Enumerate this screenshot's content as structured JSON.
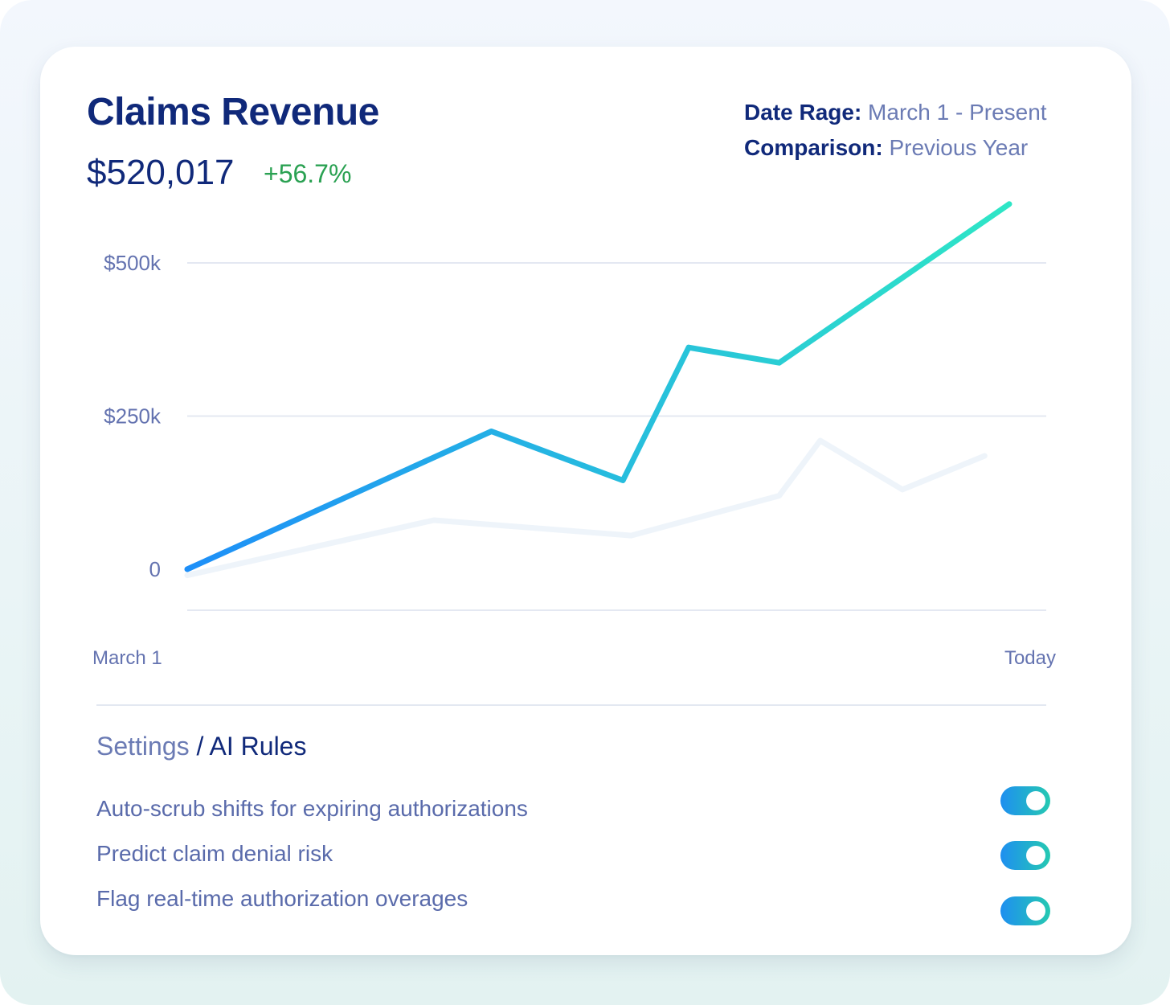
{
  "header": {
    "title": "Claims Revenue",
    "total": "$520,017",
    "change": "+56.7%",
    "date_range_label": "Date Rage:",
    "date_range_value": "March 1 - Present",
    "comparison_label": "Comparison:",
    "comparison_value": "Previous Year"
  },
  "chart_data": {
    "type": "line",
    "title": "",
    "xlabel": "",
    "ylabel": "",
    "ylim": [
      -70000,
      600000
    ],
    "y_ticks": [
      {
        "value": 500000,
        "label": "$500k"
      },
      {
        "value": 250000,
        "label": "$250k"
      },
      {
        "value": 0,
        "label": "0"
      }
    ],
    "x_tick_labels": [
      "March 1",
      "Today"
    ],
    "grid": true,
    "series": [
      {
        "color_start": "#1e8ff8",
        "color_end": "#2ee6c6",
        "x": [
          0,
          0.37,
          0.53,
          0.61,
          0.72,
          1.0
        ],
        "y": [
          0,
          225000,
          145000,
          362000,
          337000,
          596000
        ]
      },
      {
        "color": "#eef4fa",
        "x": [
          0,
          0.3,
          0.54,
          0.72,
          0.77,
          0.87,
          0.97
        ],
        "y": [
          -10000,
          80000,
          55000,
          120000,
          210000,
          130000,
          185000
        ]
      }
    ]
  },
  "settings": {
    "breadcrumb_parent": "Settings",
    "breadcrumb_separator": "/",
    "breadcrumb_current": "AI Rules",
    "rules": [
      {
        "label": "Auto-scrub shifts for expiring authorizations",
        "enabled": true
      },
      {
        "label": "Predict claim denial risk",
        "enabled": true
      },
      {
        "label": "Flag real-time authorization overages",
        "enabled": true
      }
    ]
  }
}
